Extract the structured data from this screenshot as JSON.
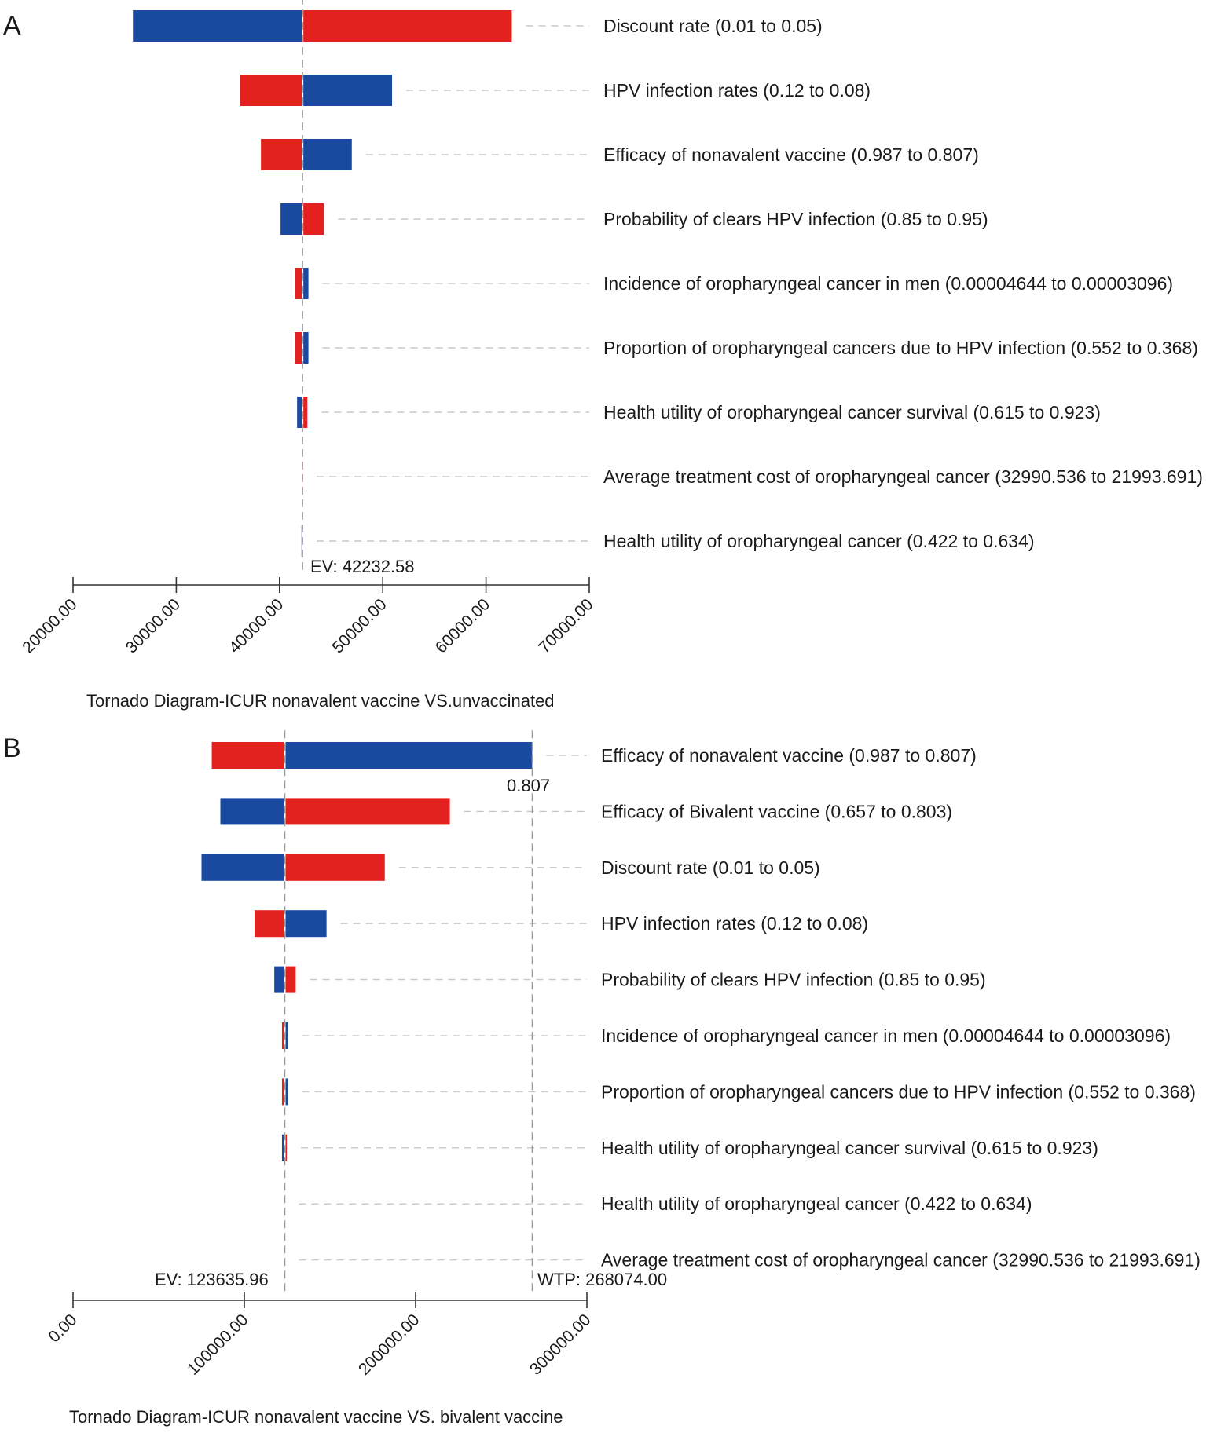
{
  "chart_data": [
    {
      "type": "tornado",
      "panel": "A",
      "title": "Tornado Diagram-ICUR nonavalent vaccine VS.unvaccinated",
      "xlim": [
        20000,
        70000
      ],
      "tick_values": [
        20000,
        30000,
        40000,
        50000,
        60000,
        70000
      ],
      "tick_labels": [
        "20000.00",
        "30000.00",
        "40000.00",
        "50000.00",
        "60000.00",
        "70000.00"
      ],
      "ev": 42232.58,
      "ev_label": "EV: 42232.58",
      "legend_colors": {
        "low": "#1a4aa0",
        "high": "#e32220"
      },
      "params": [
        {
          "label": "Discount rate (0.01 to 0.05)",
          "blue": 25800,
          "red": 62500
        },
        {
          "label": "HPV infection rates (0.12 to 0.08)",
          "blue": 50900,
          "red": 36200
        },
        {
          "label": "Efficacy of nonavalent vaccine (0.987 to 0.807)",
          "blue": 47000,
          "red": 38200
        },
        {
          "label": "Probability of clears HPV infection (0.85 to 0.95)",
          "blue": 40100,
          "red": 44300
        },
        {
          "label": "Incidence of oropharyngeal cancer in men (0.00004644 to 0.00003096)",
          "blue": 42800,
          "red": 41500
        },
        {
          "label": "Proportion of oropharyngeal cancers due to HPV infection (0.552 to 0.368)",
          "blue": 42800,
          "red": 41500
        },
        {
          "label": "Health utility of oropharyngeal cancer survival (0.615 to 0.923)",
          "blue": 41700,
          "red": 42700
        },
        {
          "label": "Average treatment cost of oropharyngeal cancer (32990.536 to 21993.691)",
          "blue": 42232.58,
          "red": 42150
        },
        {
          "label": "Health utility of oropharyngeal cancer (0.422 to 0.634)",
          "blue": 42130,
          "red": 42232.58
        }
      ]
    },
    {
      "type": "tornado",
      "panel": "B",
      "title": "Tornado Diagram-ICUR nonavalent vaccine VS. bivalent vaccine",
      "xlim": [
        0,
        300000
      ],
      "tick_values": [
        0,
        100000,
        200000,
        300000
      ],
      "tick_labels": [
        "0.00",
        "100000.00",
        "200000.00",
        "300000.00"
      ],
      "ev": 123635.96,
      "ev_label": "EV: 123635.96",
      "wtp": 268074.0,
      "wtp_label": "WTP: 268074.00",
      "threshold_label": "0.807",
      "legend_colors": {
        "low": "#1a4aa0",
        "high": "#e32220"
      },
      "params": [
        {
          "label": "Efficacy of nonavalent vaccine (0.987 to 0.807)",
          "blue": 268074,
          "red": 81000
        },
        {
          "label": "Efficacy of Bivalent vaccine (0.657 to 0.803)",
          "blue": 86000,
          "red": 220000
        },
        {
          "label": "Discount rate (0.01 to 0.05)",
          "blue": 75000,
          "red": 182000
        },
        {
          "label": "HPV infection rates (0.12 to 0.08)",
          "blue": 148000,
          "red": 106000
        },
        {
          "label": "Probability of clears HPV infection (0.85 to 0.95)",
          "blue": 117500,
          "red": 130000
        },
        {
          "label": "Incidence of oropharyngeal cancer in men (0.00004644 to 0.00003096)",
          "blue": 125500,
          "red": 122000
        },
        {
          "label": "Proportion of oropharyngeal cancers due to HPV infection (0.552 to 0.368)",
          "blue": 125500,
          "red": 122000
        },
        {
          "label": "Health utility of oropharyngeal cancer survival (0.615 to 0.923)",
          "blue": 122000,
          "red": 124800
        },
        {
          "label": "Health utility of oropharyngeal cancer (0.422 to 0.634)",
          "blue": 123635.96,
          "red": 123635.96
        },
        {
          "label": "Average treatment cost of oropharyngeal cancer (32990.536 to 21993.691)",
          "blue": 123635.96,
          "red": 123635.96
        }
      ]
    }
  ]
}
